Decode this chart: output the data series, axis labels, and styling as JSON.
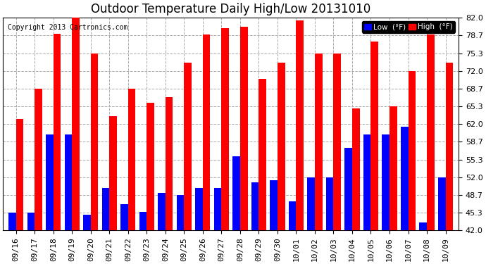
{
  "title": "Outdoor Temperature Daily High/Low 20131010",
  "copyright": "Copyright 2013 Cartronics.com",
  "legend_low": "Low  (°F)",
  "legend_high": "High  (°F)",
  "dates": [
    "09/16",
    "09/17",
    "09/18",
    "09/19",
    "09/20",
    "09/21",
    "09/22",
    "09/23",
    "09/24",
    "09/25",
    "09/26",
    "09/27",
    "09/28",
    "09/29",
    "09/30",
    "10/01",
    "10/02",
    "10/03",
    "10/04",
    "10/05",
    "10/06",
    "10/07",
    "10/08",
    "10/09"
  ],
  "high": [
    63.0,
    68.7,
    79.0,
    83.0,
    75.3,
    63.5,
    68.7,
    66.0,
    67.0,
    73.5,
    78.8,
    80.0,
    80.3,
    70.5,
    73.5,
    81.5,
    75.3,
    75.3,
    65.0,
    77.5,
    65.3,
    72.0,
    78.8,
    73.5
  ],
  "low": [
    45.3,
    45.3,
    60.0,
    60.0,
    45.0,
    50.0,
    47.0,
    45.5,
    49.0,
    48.7,
    50.0,
    50.0,
    56.0,
    51.0,
    51.5,
    47.5,
    52.0,
    52.0,
    57.5,
    60.0,
    60.0,
    61.5,
    43.5,
    52.0
  ],
  "high_color": "#ff0000",
  "low_color": "#0000ff",
  "bg_color": "#ffffff",
  "grid_color": "#aaaaaa",
  "ymin": 42.0,
  "ymax": 82.0,
  "yticks": [
    42.0,
    45.3,
    48.7,
    52.0,
    55.3,
    58.7,
    62.0,
    65.3,
    68.7,
    72.0,
    75.3,
    78.7,
    82.0
  ],
  "title_fontsize": 12,
  "tick_fontsize": 8,
  "bar_width": 0.4
}
